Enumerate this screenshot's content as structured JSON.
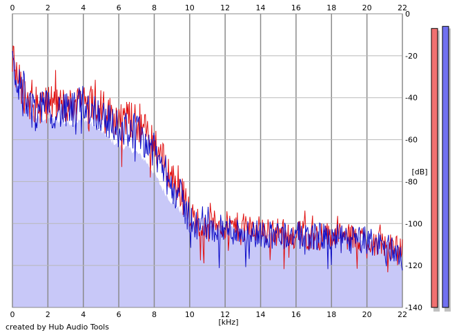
{
  "chart_data": {
    "type": "area",
    "x_unit": "[kHz]",
    "y_unit": "[dB]",
    "xlim": [
      0,
      22
    ],
    "ylim": [
      -140,
      0
    ],
    "x_ticks": [
      0,
      2,
      4,
      6,
      8,
      10,
      12,
      14,
      16,
      18,
      20,
      22
    ],
    "y_ticks": [
      0,
      -20,
      -40,
      -60,
      -80,
      -100,
      -120,
      -140
    ],
    "grid": true,
    "x": [
      0.0,
      0.25,
      0.5,
      0.75,
      1.0,
      1.5,
      2.0,
      2.5,
      3.0,
      3.5,
      4.0,
      4.5,
      5.0,
      5.5,
      6.0,
      6.5,
      7.0,
      7.5,
      8.0,
      8.5,
      9.0,
      9.5,
      10.0,
      10.5,
      11.0,
      12.0,
      13.0,
      14.0,
      15.0,
      16.0,
      17.0,
      18.0,
      19.0,
      20.0,
      21.0,
      22.0
    ],
    "series": [
      {
        "color": "#e01010",
        "values": [
          -22,
          -28,
          -36,
          -40,
          -42,
          -44,
          -42,
          -43,
          -44,
          -44,
          -38,
          -42,
          -44,
          -48,
          -50,
          -50,
          -52,
          -56,
          -60,
          -70,
          -78,
          -84,
          -96,
          -99,
          -100,
          -101,
          -102,
          -103,
          -104,
          -105,
          -106,
          -106,
          -107,
          -108,
          -110,
          -114
        ]
      },
      {
        "color": "#1010c8",
        "values": [
          -24,
          -30,
          -38,
          -42,
          -45,
          -46,
          -45,
          -46,
          -47,
          -46,
          -42,
          -46,
          -48,
          -52,
          -55,
          -55,
          -56,
          -60,
          -66,
          -74,
          -82,
          -88,
          -98,
          -101,
          -102,
          -103,
          -104,
          -105,
          -105,
          -106,
          -106,
          -107,
          -108,
          -108,
          -111,
          -114
        ]
      },
      {
        "role": "fill",
        "color": "#c8c8f8",
        "values": [
          -18,
          -28,
          -40,
          -45,
          -48,
          -50,
          -50,
          -51,
          -52,
          -52,
          -50,
          -53,
          -56,
          -60,
          -63,
          -64,
          -66,
          -70,
          -76,
          -84,
          -90,
          -94,
          -100,
          -101,
          -101,
          -102,
          -103,
          -104,
          -104,
          -105,
          -105,
          -106,
          -107,
          -107,
          -109,
          -112
        ]
      }
    ],
    "level_meters": [
      {
        "channel": "left",
        "color": "#f07070",
        "level_db": -7
      },
      {
        "channel": "right",
        "color": "#7070f0",
        "level_db": -6
      }
    ]
  },
  "footer": {
    "credit": "created by Hub Audio Tools"
  }
}
